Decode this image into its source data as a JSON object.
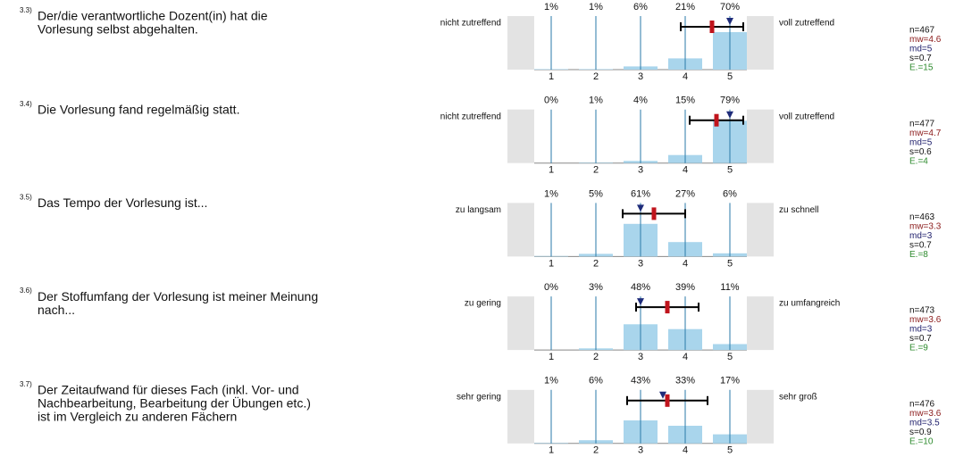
{
  "chart_data": [
    {
      "type": "bar",
      "number": "3.3)",
      "question": [
        "Der/die verantwortliche Dozent(in) hat die",
        "Vorlesung selbst abgehalten."
      ],
      "left_label": "nicht zutreffend",
      "right_label": "voll zutreffend",
      "categories": [
        1,
        2,
        3,
        4,
        5
      ],
      "values": [
        1,
        1,
        6,
        21,
        70
      ],
      "value_labels": [
        "1%",
        "1%",
        "6%",
        "21%",
        "70%"
      ],
      "ylim": [
        0,
        100
      ],
      "color": "#a9d5ec",
      "mean": 4.6,
      "median": 5,
      "sd": 0.7,
      "stats": [
        "n=467",
        "mw=4.6",
        "md=5",
        "s=0.7",
        "E.=15"
      ]
    },
    {
      "type": "bar",
      "number": "3.4)",
      "question": [
        "Die Vorlesung fand regelmäßig statt."
      ],
      "left_label": "nicht zutreffend",
      "right_label": "voll zutreffend",
      "categories": [
        1,
        2,
        3,
        4,
        5
      ],
      "values": [
        0,
        1,
        4,
        15,
        79
      ],
      "value_labels": [
        "0%",
        "1%",
        "4%",
        "15%",
        "79%"
      ],
      "ylim": [
        0,
        100
      ],
      "color": "#a9d5ec",
      "mean": 4.7,
      "median": 5,
      "sd": 0.6,
      "stats": [
        "n=477",
        "mw=4.7",
        "md=5",
        "s=0.6",
        "E.=4"
      ]
    },
    {
      "type": "bar",
      "number": "3.5)",
      "question": [
        "Das Tempo der Vorlesung ist..."
      ],
      "left_label": "zu langsam",
      "right_label": "zu schnell",
      "categories": [
        1,
        2,
        3,
        4,
        5
      ],
      "values": [
        1,
        5,
        61,
        27,
        6
      ],
      "value_labels": [
        "1%",
        "5%",
        "61%",
        "27%",
        "6%"
      ],
      "ylim": [
        0,
        100
      ],
      "color": "#a9d5ec",
      "mean": 3.3,
      "median": 3,
      "sd": 0.7,
      "stats": [
        "n=463",
        "mw=3.3",
        "md=3",
        "s=0.7",
        "E.=8"
      ]
    },
    {
      "type": "bar",
      "number": "3.6)",
      "question": [
        "Der Stoffumfang der Vorlesung ist meiner Meinung",
        "nach..."
      ],
      "left_label": "zu gering",
      "right_label": "zu umfangreich",
      "categories": [
        1,
        2,
        3,
        4,
        5
      ],
      "values": [
        0,
        3,
        48,
        39,
        11
      ],
      "value_labels": [
        "0%",
        "3%",
        "48%",
        "39%",
        "11%"
      ],
      "ylim": [
        0,
        100
      ],
      "color": "#a9d5ec",
      "mean": 3.6,
      "median": 3,
      "sd": 0.7,
      "stats": [
        "n=473",
        "mw=3.6",
        "md=3",
        "s=0.7",
        "E.=9"
      ]
    },
    {
      "type": "bar",
      "number": "3.7)",
      "question": [
        "Der Zeitaufwand für dieses Fach (inkl. Vor- und",
        "Nachbearbeitung, Bearbeitung der Übungen etc.)",
        "ist im Vergleich zu anderen Fächern"
      ],
      "left_label": "sehr gering",
      "right_label": "sehr groß",
      "categories": [
        1,
        2,
        3,
        4,
        5
      ],
      "values": [
        1,
        6,
        43,
        33,
        17
      ],
      "value_labels": [
        "1%",
        "6%",
        "43%",
        "33%",
        "17%"
      ],
      "ylim": [
        0,
        100
      ],
      "color": "#a9d5ec",
      "mean": 3.6,
      "median": 3.5,
      "sd": 0.9,
      "stats": [
        "n=476",
        "mw=3.6",
        "md=3.5",
        "s=0.9",
        "E.=10"
      ]
    }
  ]
}
